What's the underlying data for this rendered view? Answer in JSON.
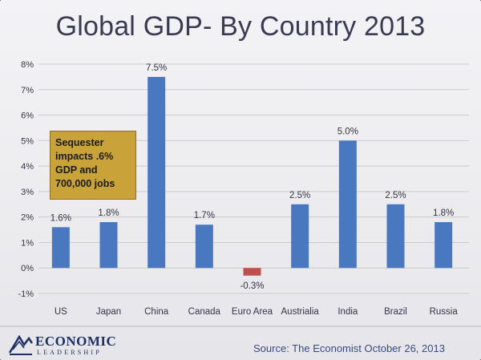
{
  "slide": {
    "title": "Global GDP- By Country 2013",
    "callout": "Sequester impacts .6% GDP and 700,000 jobs",
    "source": "Source: The Economist October 26, 2013",
    "logo": {
      "name": "ECONOMIC",
      "tagline": "LEADERSHIP"
    }
  },
  "colors": {
    "positive": "#4a78c0",
    "negative": "#c0504d",
    "grid": "#c9c9cf",
    "text": "#333344"
  },
  "chart_data": {
    "type": "bar",
    "title": "Global GDP- By Country 2013",
    "categories": [
      "US",
      "Japan",
      "China",
      "Canada",
      "Euro Area",
      "Austrialia",
      "India",
      "Brazil",
      "Russia"
    ],
    "values": [
      1.6,
      1.8,
      7.5,
      1.7,
      -0.3,
      2.5,
      5.0,
      2.5,
      1.8
    ],
    "data_labels": [
      "1.6%",
      "1.8%",
      "7.5%",
      "1.7%",
      "-0.3%",
      "2.5%",
      "5.0%",
      "2.5%",
      "1.8%"
    ],
    "yticks": [
      "-1%",
      "0%",
      "1%",
      "2%",
      "3%",
      "4%",
      "5%",
      "6%",
      "7%",
      "8%"
    ],
    "ylim": [
      -1,
      8
    ],
    "grid": true
  }
}
